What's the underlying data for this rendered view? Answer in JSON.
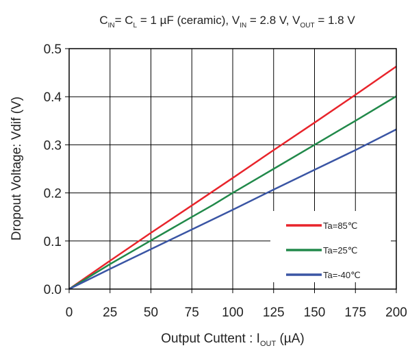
{
  "chart_data": {
    "type": "line",
    "title": {
      "c_in": "C",
      "sub_in": "IN",
      "c_l_sep": "= C",
      "sub_l": "L",
      "cap_val": " = 1 µF (ceramic), V",
      "sub_vin": "IN",
      "vin_val": " = 2.8 V, V",
      "sub_vout": "OUT",
      "vout_val": " = 1.8 V"
    },
    "xlabel": {
      "main": "Output Cuttent : I",
      "sub": "OUT",
      "unit": " (µA)"
    },
    "ylabel": "Dropout Voltage: Vdif (V)",
    "xlim": [
      0,
      200
    ],
    "ylim": [
      0,
      0.5
    ],
    "x_ticks": [
      "0",
      "25",
      "50",
      "75",
      "100",
      "125",
      "150",
      "175",
      "200"
    ],
    "y_ticks": [
      "0.0",
      "0.1",
      "0.2",
      "0.3",
      "0.4",
      "0.5"
    ],
    "grid": true,
    "legend_position": "lower-right",
    "series": [
      {
        "name": "Ta=85℃",
        "color": "#e8242b",
        "x": [
          0,
          25,
          50,
          75,
          100,
          125,
          150,
          175,
          200
        ],
        "y": [
          0,
          0.059,
          0.117,
          0.174,
          0.231,
          0.289,
          0.346,
          0.404,
          0.463
        ]
      },
      {
        "name": "Ta=25℃",
        "color": "#21894a",
        "x": [
          0,
          25,
          50,
          75,
          88,
          100,
          125,
          150,
          175,
          200
        ],
        "y": [
          0,
          0.052,
          0.101,
          0.15,
          0.175,
          0.2,
          0.25,
          0.3,
          0.35,
          0.401
        ]
      },
      {
        "name": "Ta=-40℃",
        "color": "#3a55a4",
        "x": [
          0,
          25,
          50,
          75,
          100,
          125,
          150,
          175,
          200
        ],
        "y": [
          0,
          0.042,
          0.083,
          0.124,
          0.165,
          0.207,
          0.248,
          0.289,
          0.332
        ]
      }
    ]
  }
}
